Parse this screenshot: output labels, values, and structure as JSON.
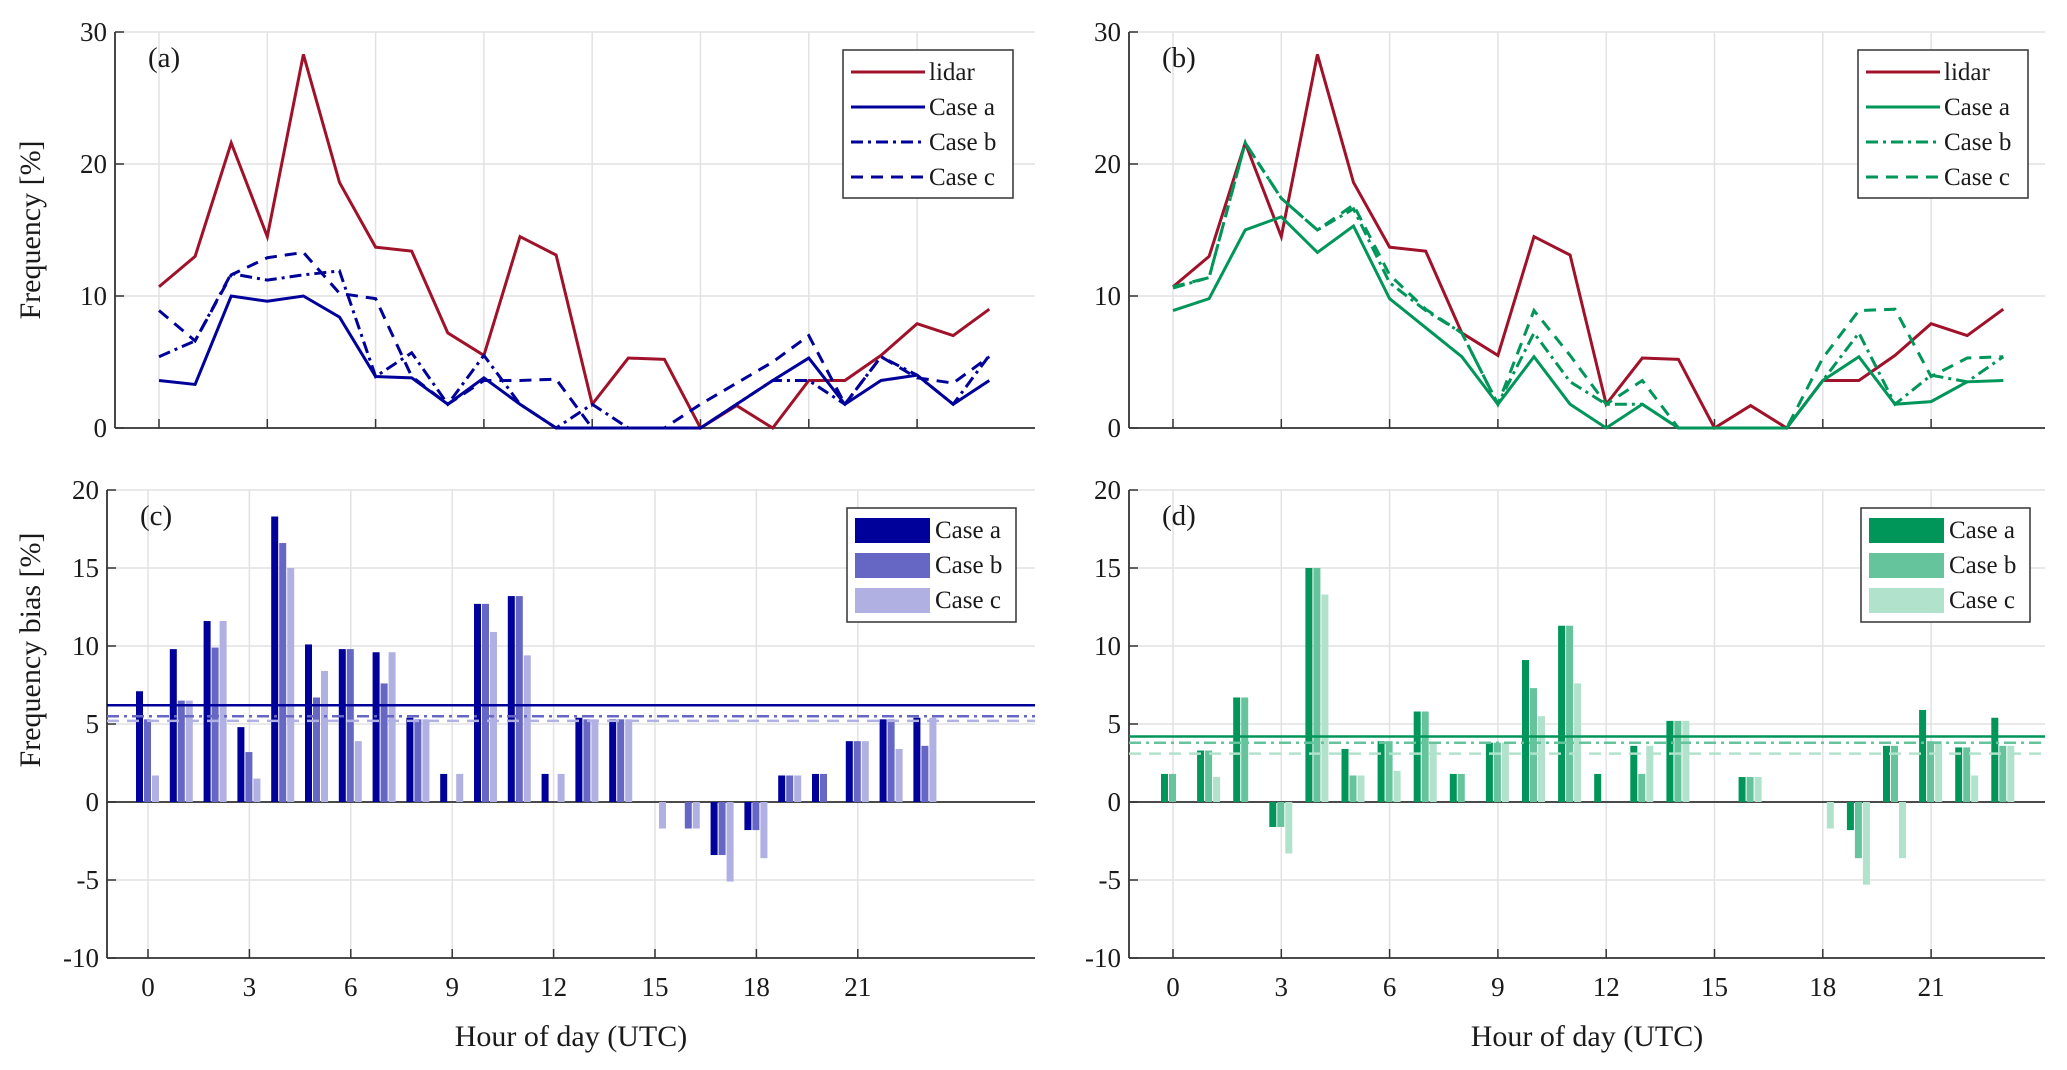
{
  "colors": {
    "lidar": "#a0112a",
    "blue_a": "#00009a",
    "blue_b": "#6666c4",
    "blue_c": "#b0b0e2",
    "green_a": "#00965a",
    "green_b": "#66c49c",
    "green_c": "#b0e2cc",
    "grid": "#e2e2e2",
    "axis": "#333333"
  },
  "chart_data": [
    {
      "id": "a",
      "type": "line",
      "panel_label": "(a)",
      "title": "",
      "xlabel": "",
      "ylabel": "Frequency [%]",
      "xlim": [
        -1,
        24.5
      ],
      "ylim": [
        0,
        30
      ],
      "xticks": [
        0,
        3,
        6,
        9,
        12,
        15,
        18,
        21
      ],
      "yticks": [
        0,
        10,
        20,
        30
      ],
      "grid": true,
      "legend_position": "top-right",
      "x": [
        0,
        1,
        2,
        3,
        4,
        5,
        6,
        7,
        8,
        9,
        10,
        11,
        12,
        13,
        14,
        15,
        16,
        17,
        18,
        19,
        20,
        21,
        22,
        23
      ],
      "series": [
        {
          "name": "lidar",
          "color_key": "lidar",
          "dash": "solid",
          "values": [
            10.7,
            13.0,
            21.6,
            14.5,
            28.3,
            18.6,
            13.7,
            13.4,
            7.2,
            5.5,
            14.5,
            13.1,
            1.8,
            5.3,
            5.2,
            0,
            1.7,
            0,
            3.6,
            3.6,
            5.5,
            7.9,
            7.0,
            9.0
          ]
        },
        {
          "name": "Case a",
          "color_key": "blue_a",
          "dash": "solid",
          "values": [
            3.6,
            3.3,
            10.0,
            9.6,
            10.0,
            8.4,
            3.9,
            3.8,
            1.8,
            3.8,
            1.8,
            0,
            0,
            0,
            0,
            0,
            1.8,
            3.6,
            5.3,
            1.8,
            3.6,
            4.0,
            1.8,
            3.6
          ]
        },
        {
          "name": "Case b",
          "color_key": "blue_a",
          "dash": "dashdot",
          "values": [
            5.4,
            6.6,
            11.7,
            11.2,
            11.6,
            11.9,
            3.9,
            5.7,
            1.8,
            5.5,
            1.8,
            0,
            1.8,
            0,
            0,
            0,
            1.8,
            3.6,
            3.6,
            1.8,
            5.4,
            4.0,
            1.8,
            5.5
          ]
        },
        {
          "name": "Case c",
          "color_key": "blue_a",
          "dash": "dashed",
          "values": [
            8.9,
            6.6,
            11.6,
            12.9,
            13.3,
            10.2,
            9.8,
            3.9,
            1.8,
            3.6,
            3.6,
            3.7,
            0,
            0,
            0,
            1.8,
            3.4,
            5.0,
            7.0,
            1.8,
            5.4,
            3.8,
            3.4,
            5.4
          ]
        }
      ]
    },
    {
      "id": "b",
      "type": "line",
      "panel_label": "(b)",
      "title": "",
      "xlabel": "",
      "ylabel": "",
      "xlim": [
        -1,
        24.5
      ],
      "ylim": [
        0,
        30
      ],
      "xticks": [
        0,
        3,
        6,
        9,
        12,
        15,
        18,
        21
      ],
      "yticks": [
        0,
        10,
        20,
        30
      ],
      "grid": true,
      "legend_position": "top-right",
      "x": [
        0,
        1,
        2,
        3,
        4,
        5,
        6,
        7,
        8,
        9,
        10,
        11,
        12,
        13,
        14,
        15,
        16,
        17,
        18,
        19,
        20,
        21,
        22,
        23
      ],
      "series": [
        {
          "name": "lidar",
          "color_key": "lidar",
          "dash": "solid",
          "values": [
            10.7,
            13.0,
            21.6,
            14.5,
            28.3,
            18.6,
            13.7,
            13.4,
            7.2,
            5.5,
            14.5,
            13.1,
            1.8,
            5.3,
            5.2,
            0,
            1.7,
            0,
            3.6,
            3.6,
            5.5,
            7.9,
            7.0,
            9.0
          ]
        },
        {
          "name": "Case a",
          "color_key": "green_a",
          "dash": "solid",
          "values": [
            8.9,
            9.8,
            15.0,
            16.0,
            13.3,
            15.3,
            9.8,
            7.6,
            5.4,
            1.8,
            5.4,
            1.8,
            0,
            1.8,
            0,
            0,
            0,
            0,
            3.6,
            5.4,
            1.8,
            2.0,
            3.5,
            3.6
          ]
        },
        {
          "name": "Case b",
          "color_key": "green_a",
          "dash": "dashdot",
          "values": [
            10.6,
            11.4,
            21.6,
            17.4,
            15.0,
            16.6,
            11.0,
            8.9,
            7.2,
            1.8,
            7.2,
            3.5,
            1.8,
            1.8,
            0,
            0,
            0,
            0,
            3.6,
            7.2,
            1.8,
            4.0,
            3.5,
            5.4
          ]
        },
        {
          "name": "Case c",
          "color_key": "green_a",
          "dash": "dashed",
          "values": [
            10.7,
            11.4,
            21.6,
            17.4,
            15.0,
            16.9,
            11.6,
            9.0,
            7.2,
            1.8,
            8.9,
            5.5,
            1.8,
            3.6,
            0,
            0,
            0,
            0,
            5.3,
            8.9,
            9.0,
            3.9,
            5.3,
            5.4
          ]
        }
      ]
    },
    {
      "id": "c",
      "type": "bar",
      "panel_label": "(c)",
      "title": "",
      "xlabel": "Hour of day (UTC)",
      "ylabel": "Frequency bias [%]",
      "xlim": [
        -1,
        24.5
      ],
      "ylim": [
        -10,
        20
      ],
      "xticks": [
        0,
        3,
        6,
        9,
        12,
        15,
        18,
        21
      ],
      "yticks": [
        -10,
        -5,
        0,
        5,
        10,
        15,
        20
      ],
      "grid": true,
      "legend_position": "top-right",
      "categories": [
        0,
        1,
        2,
        3,
        4,
        5,
        6,
        7,
        8,
        9,
        10,
        11,
        12,
        13,
        14,
        15,
        16,
        17,
        18,
        19,
        20,
        21,
        22,
        23
      ],
      "series": [
        {
          "name": "Case a",
          "color_key": "blue_a",
          "values": [
            7.1,
            9.8,
            11.6,
            4.8,
            18.3,
            10.1,
            9.8,
            9.6,
            5.4,
            1.8,
            12.7,
            13.2,
            1.8,
            5.4,
            5.3,
            0,
            0,
            -3.4,
            -1.8,
            1.7,
            1.8,
            3.9,
            5.3,
            5.4
          ],
          "mean": 6.2,
          "mean_dash": "solid"
        },
        {
          "name": "Case b",
          "color_key": "blue_b",
          "values": [
            5.3,
            6.5,
            9.9,
            3.2,
            16.6,
            6.7,
            9.8,
            7.6,
            5.3,
            0,
            12.7,
            13.2,
            0,
            5.3,
            5.3,
            0,
            -1.7,
            -3.4,
            -1.8,
            1.7,
            1.8,
            3.9,
            5.3,
            3.6
          ],
          "mean": 5.5,
          "mean_dash": "dashdot"
        },
        {
          "name": "Case c",
          "color_key": "blue_c",
          "values": [
            1.7,
            6.5,
            11.6,
            1.5,
            15.0,
            8.4,
            3.9,
            9.6,
            5.3,
            1.8,
            10.9,
            9.4,
            1.8,
            5.3,
            5.3,
            -1.7,
            -1.7,
            -5.1,
            -3.6,
            1.7,
            0,
            3.9,
            3.4,
            5.4
          ],
          "mean": 5.2,
          "mean_dash": "dashed"
        }
      ]
    },
    {
      "id": "d",
      "type": "bar",
      "panel_label": "(d)",
      "title": "",
      "xlabel": "Hour of day (UTC)",
      "ylabel": "",
      "xlim": [
        -1,
        24.5
      ],
      "ylim": [
        -10,
        20
      ],
      "xticks": [
        0,
        3,
        6,
        9,
        12,
        15,
        18,
        21
      ],
      "yticks": [
        -10,
        -5,
        0,
        5,
        10,
        15,
        20
      ],
      "grid": true,
      "legend_position": "top-right",
      "categories": [
        0,
        1,
        2,
        3,
        4,
        5,
        6,
        7,
        8,
        9,
        10,
        11,
        12,
        13,
        14,
        15,
        16,
        17,
        18,
        19,
        20,
        21,
        22,
        23
      ],
      "series": [
        {
          "name": "Case a",
          "color_key": "green_a",
          "values": [
            1.8,
            3.3,
            6.7,
            -1.6,
            15.0,
            3.4,
            3.9,
            5.8,
            1.8,
            3.8,
            9.1,
            11.3,
            1.8,
            3.6,
            5.2,
            0,
            1.6,
            0,
            0,
            -1.8,
            3.6,
            5.9,
            3.5,
            5.4
          ],
          "mean": 4.2,
          "mean_dash": "solid"
        },
        {
          "name": "Case b",
          "color_key": "green_b",
          "values": [
            1.8,
            3.3,
            6.7,
            -1.6,
            15.0,
            1.7,
            3.9,
            5.8,
            1.8,
            3.8,
            7.3,
            11.3,
            0,
            1.8,
            5.2,
            0,
            1.6,
            0,
            0,
            -3.6,
            3.6,
            3.9,
            3.5,
            3.6
          ],
          "mean": 3.8,
          "mean_dash": "dashdot"
        },
        {
          "name": "Case c",
          "color_key": "green_c",
          "values": [
            0,
            1.6,
            0,
            -3.3,
            13.3,
            1.7,
            2.0,
            3.8,
            0,
            3.8,
            5.5,
            7.6,
            0,
            3.6,
            5.2,
            0,
            1.6,
            0,
            -1.7,
            -5.3,
            -3.6,
            3.9,
            1.7,
            3.6
          ],
          "mean": 3.1,
          "mean_dash": "dashed"
        }
      ]
    }
  ]
}
